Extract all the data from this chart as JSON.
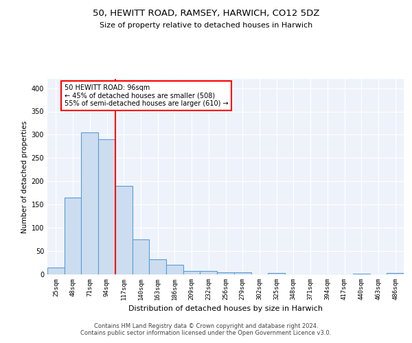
{
  "title1": "50, HEWITT ROAD, RAMSEY, HARWICH, CO12 5DZ",
  "title2": "Size of property relative to detached houses in Harwich",
  "xlabel": "Distribution of detached houses by size in Harwich",
  "ylabel": "Number of detached properties",
  "bar_labels": [
    "25sqm",
    "48sqm",
    "71sqm",
    "94sqm",
    "117sqm",
    "140sqm",
    "163sqm",
    "186sqm",
    "209sqm",
    "232sqm",
    "256sqm",
    "279sqm",
    "302sqm",
    "325sqm",
    "348sqm",
    "371sqm",
    "394sqm",
    "417sqm",
    "440sqm",
    "463sqm",
    "486sqm"
  ],
  "bar_values": [
    15,
    165,
    305,
    290,
    190,
    75,
    33,
    20,
    8,
    8,
    5,
    5,
    0,
    3,
    0,
    0,
    0,
    0,
    2,
    0,
    3
  ],
  "bar_color": "#ccddf0",
  "bar_edge_color": "#5b9bd5",
  "bar_edge_width": 0.8,
  "red_line_x": 3.5,
  "annotation_text": "50 HEWITT ROAD: 96sqm\n← 45% of detached houses are smaller (508)\n55% of semi-detached houses are larger (610) →",
  "annotation_box_color": "white",
  "annotation_box_edge": "red",
  "footer_text": "Contains HM Land Registry data © Crown copyright and database right 2024.\nContains public sector information licensed under the Open Government Licence v3.0.",
  "background_color": "#eef3fb",
  "ylim": [
    0,
    420
  ],
  "yticks": [
    0,
    50,
    100,
    150,
    200,
    250,
    300,
    350,
    400
  ],
  "grid_color": "white",
  "fig_bg": "white",
  "title1_fontsize": 9.5,
  "title2_fontsize": 8,
  "ylabel_fontsize": 7.5,
  "xlabel_fontsize": 8,
  "tick_fontsize": 6.5,
  "annotation_fontsize": 7,
  "footer_fontsize": 6
}
